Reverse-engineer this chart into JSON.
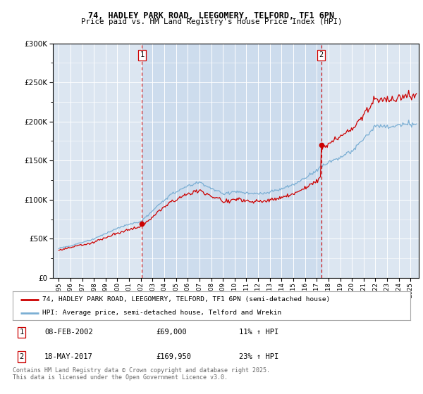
{
  "title1": "74, HADLEY PARK ROAD, LEEGOMERY, TELFORD, TF1 6PN",
  "title2": "Price paid vs. HM Land Registry's House Price Index (HPI)",
  "legend_line1": "74, HADLEY PARK ROAD, LEEGOMERY, TELFORD, TF1 6PN (semi-detached house)",
  "legend_line2": "HPI: Average price, semi-detached house, Telford and Wrekin",
  "annotation1_date": "08-FEB-2002",
  "annotation1_price": "£69,000",
  "annotation1_hpi": "11% ↑ HPI",
  "annotation2_date": "18-MAY-2017",
  "annotation2_price": "£169,950",
  "annotation2_hpi": "23% ↑ HPI",
  "footnote": "Contains HM Land Registry data © Crown copyright and database right 2025.\nThis data is licensed under the Open Government Licence v3.0.",
  "sale1_year": 2002.1,
  "sale1_value": 69000,
  "sale2_year": 2017.38,
  "sale2_value": 169950,
  "price_line_color": "#cc0000",
  "hpi_line_color": "#7bafd4",
  "sale_dot_color": "#cc0000",
  "vline_color": "#cc0000",
  "shade_color": "#c8d8ec",
  "plot_bg_color": "#dce6f1",
  "ylim": [
    0,
    300000
  ],
  "xlim_start": 1994.5,
  "xlim_end": 2025.7
}
